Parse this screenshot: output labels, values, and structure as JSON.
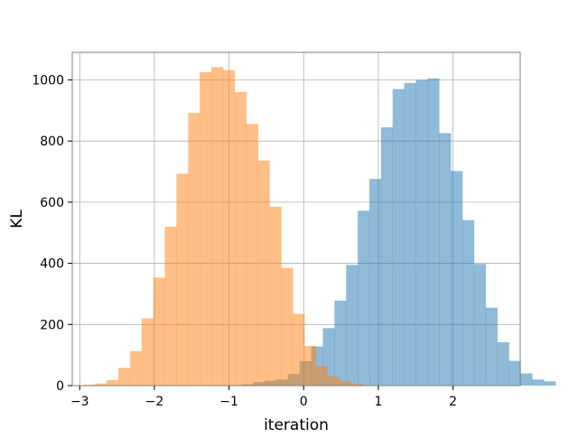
{
  "chart_data": {
    "type": "bar",
    "subtype": "overlapping-histogram",
    "title": "",
    "xlabel": "iteration",
    "ylabel": "KL",
    "xlim": [
      -3.1,
      2.9
    ],
    "ylim": [
      0,
      1090
    ],
    "grid": true,
    "legend": "none",
    "x_ticks": [
      {
        "value": -3,
        "label": "−3"
      },
      {
        "value": -2,
        "label": "−2"
      },
      {
        "value": -1,
        "label": "−1"
      },
      {
        "value": 0,
        "label": "0"
      },
      {
        "value": 1,
        "label": "1"
      },
      {
        "value": 2,
        "label": "2"
      }
    ],
    "y_ticks": [
      {
        "value": 0,
        "label": "0"
      },
      {
        "value": 200,
        "label": "200"
      },
      {
        "value": 400,
        "label": "400"
      },
      {
        "value": 600,
        "label": "600"
      },
      {
        "value": 800,
        "label": "800"
      },
      {
        "value": 1000,
        "label": "1000"
      }
    ],
    "series": [
      {
        "color": "#1f77b4",
        "opacity": 0.5,
        "bin_start": -0.99,
        "bin_width": 0.1558,
        "counts": [
          1,
          4,
          12,
          16,
          20,
          38,
          80,
          128,
          188,
          278,
          395,
          572,
          676,
          845,
          970,
          990,
          1000,
          1005,
          826,
          702,
          541,
          398,
          255,
          142,
          81,
          40,
          20,
          14
        ]
      },
      {
        "color": "#ff7f0e",
        "opacity": 0.5,
        "bin_start": -2.95,
        "bin_width": 0.1558,
        "counts": [
          3,
          7,
          18,
          58,
          113,
          220,
          353,
          520,
          693,
          892,
          1025,
          1042,
          1032,
          960,
          856,
          736,
          585,
          385,
          235,
          130,
          64,
          30,
          15,
          6
        ]
      }
    ]
  }
}
